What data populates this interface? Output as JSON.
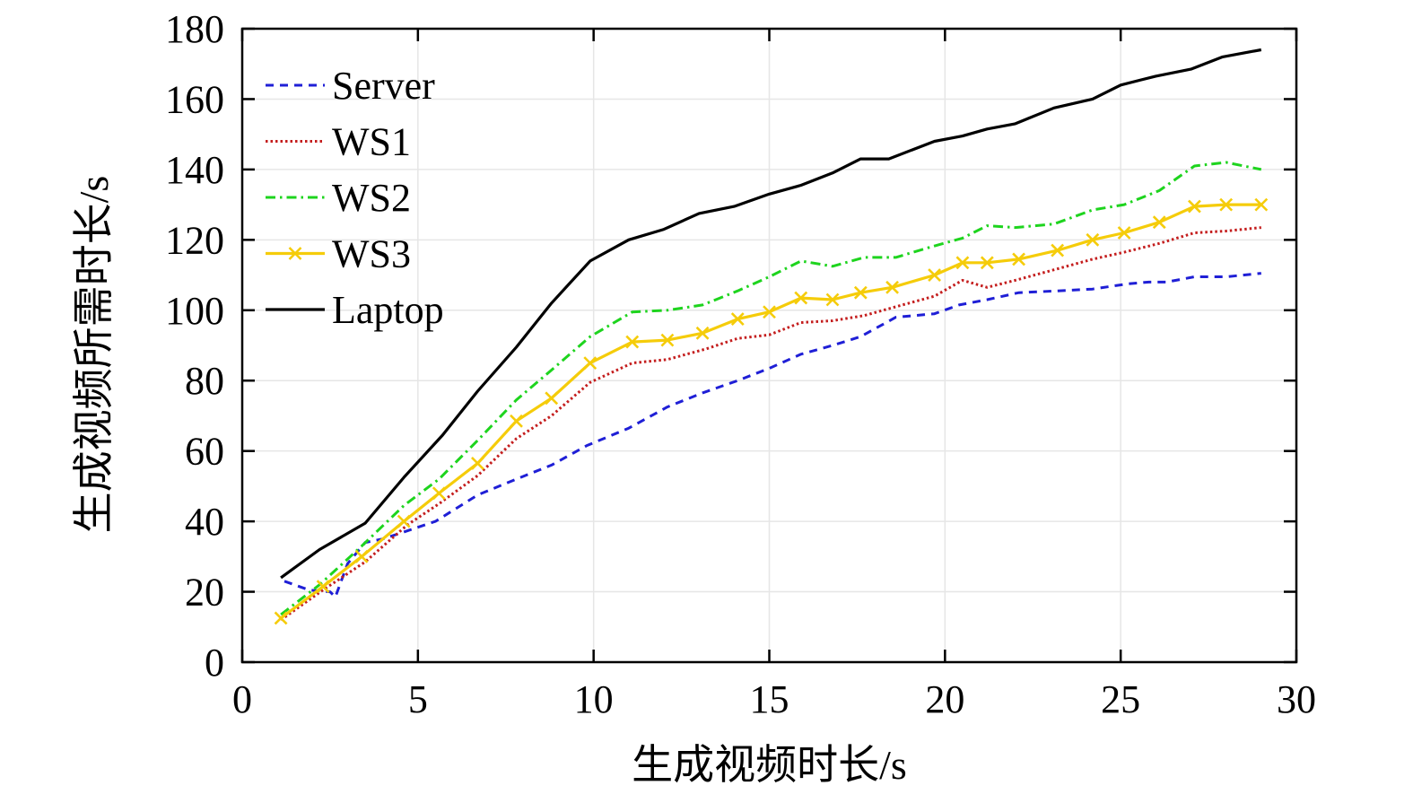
{
  "chart_data": {
    "type": "line",
    "title": "",
    "xlabel": "生成视频时长/s",
    "ylabel": "生成视频所需时长/s",
    "xlim": [
      0,
      30
    ],
    "ylim": [
      0,
      180
    ],
    "xticks": [
      0,
      5,
      10,
      15,
      20,
      25,
      30
    ],
    "yticks": [
      0,
      20,
      40,
      60,
      80,
      100,
      120,
      140,
      160,
      180
    ],
    "grid": true,
    "legend_position": "top-left",
    "series": [
      {
        "name": "Server",
        "color": "#1f1fd6",
        "style": "dashed",
        "marker": "none",
        "points": [
          [
            1.2,
            23
          ],
          [
            1.9,
            20.5
          ],
          [
            2.5,
            20
          ],
          [
            2.65,
            18.5
          ],
          [
            3.0,
            28
          ],
          [
            3.5,
            34
          ],
          [
            4.0,
            35
          ],
          [
            4.6,
            37
          ],
          [
            5.5,
            40
          ],
          [
            6.7,
            47.5
          ],
          [
            7.8,
            52
          ],
          [
            8.8,
            56
          ],
          [
            9.8,
            61.5
          ],
          [
            11.0,
            66.5
          ],
          [
            12.1,
            72.5
          ],
          [
            13.1,
            76.5
          ],
          [
            14.1,
            80
          ],
          [
            15.0,
            83.5
          ],
          [
            15.9,
            87.5
          ],
          [
            16.8,
            90
          ],
          [
            17.6,
            92.5
          ],
          [
            18.6,
            98
          ],
          [
            19.7,
            99
          ],
          [
            20.4,
            101.5
          ],
          [
            21.2,
            103
          ],
          [
            22.1,
            105
          ],
          [
            23.2,
            105.5
          ],
          [
            24.2,
            106
          ],
          [
            25.2,
            107.5
          ],
          [
            25.8,
            108
          ],
          [
            26.3,
            108
          ],
          [
            27.1,
            109.5
          ],
          [
            28.0,
            109.5
          ],
          [
            29.0,
            110.5
          ]
        ]
      },
      {
        "name": "WS1",
        "color": "#c41e1e",
        "style": "dotted",
        "marker": "none",
        "points": [
          [
            1.1,
            12
          ],
          [
            2.3,
            20.5
          ],
          [
            3.5,
            28.5
          ],
          [
            4.7,
            39
          ],
          [
            5.6,
            45
          ],
          [
            6.7,
            53
          ],
          [
            7.8,
            63.5
          ],
          [
            8.8,
            70
          ],
          [
            9.9,
            79.5
          ],
          [
            11.1,
            85
          ],
          [
            12.1,
            86
          ],
          [
            13.2,
            89
          ],
          [
            14.1,
            92
          ],
          [
            15.0,
            93
          ],
          [
            15.9,
            96.5
          ],
          [
            16.8,
            97
          ],
          [
            17.7,
            98.5
          ],
          [
            18.6,
            101
          ],
          [
            19.7,
            104
          ],
          [
            20.5,
            108.5
          ],
          [
            21.2,
            106.5
          ],
          [
            22.0,
            108.5
          ],
          [
            23.1,
            111.5
          ],
          [
            24.2,
            114.5
          ],
          [
            25.1,
            116.5
          ],
          [
            26.1,
            119
          ],
          [
            27.1,
            122
          ],
          [
            28.0,
            122.5
          ],
          [
            29.0,
            123.5
          ]
        ]
      },
      {
        "name": "WS2",
        "color": "#1ed41e",
        "style": "dashdot",
        "marker": "none",
        "points": [
          [
            1.1,
            13.5
          ],
          [
            2.2,
            22
          ],
          [
            3.4,
            33
          ],
          [
            4.6,
            44.5
          ],
          [
            5.6,
            52
          ],
          [
            6.7,
            63
          ],
          [
            7.8,
            74.5
          ],
          [
            8.8,
            83
          ],
          [
            9.9,
            92.5
          ],
          [
            11.1,
            99.5
          ],
          [
            12.1,
            100
          ],
          [
            13.1,
            101.5
          ],
          [
            14.1,
            105.5
          ],
          [
            15.0,
            109.5
          ],
          [
            15.9,
            114
          ],
          [
            16.8,
            112.5
          ],
          [
            17.7,
            115
          ],
          [
            18.6,
            115
          ],
          [
            19.6,
            118
          ],
          [
            20.5,
            120.5
          ],
          [
            21.2,
            124
          ],
          [
            22.0,
            123.5
          ],
          [
            23.1,
            124.5
          ],
          [
            24.2,
            128.5
          ],
          [
            25.1,
            130
          ],
          [
            26.1,
            134
          ],
          [
            27.1,
            141
          ],
          [
            28.0,
            142
          ],
          [
            29.0,
            140
          ]
        ]
      },
      {
        "name": "WS3",
        "color": "#f5cc0a",
        "style": "solid",
        "marker": "x",
        "points": [
          [
            1.1,
            12.5
          ],
          [
            2.3,
            21.5
          ],
          [
            3.4,
            30
          ],
          [
            4.6,
            40
          ],
          [
            5.6,
            48
          ],
          [
            6.7,
            56.5
          ],
          [
            7.8,
            68.5
          ],
          [
            8.8,
            75
          ],
          [
            9.9,
            85
          ],
          [
            11.1,
            91
          ],
          [
            12.1,
            91.5
          ],
          [
            13.1,
            93.5
          ],
          [
            14.1,
            97.5
          ],
          [
            15.0,
            99.5
          ],
          [
            15.9,
            103.5
          ],
          [
            16.8,
            103
          ],
          [
            17.6,
            105
          ],
          [
            18.5,
            106.5
          ],
          [
            19.7,
            110
          ],
          [
            20.5,
            113.5
          ],
          [
            21.2,
            113.5
          ],
          [
            22.1,
            114.5
          ],
          [
            23.2,
            117
          ],
          [
            24.2,
            120
          ],
          [
            25.1,
            122
          ],
          [
            26.1,
            125
          ],
          [
            27.1,
            129.5
          ],
          [
            28.0,
            130
          ],
          [
            29.0,
            130
          ]
        ]
      },
      {
        "name": "Laptop",
        "color": "#000000",
        "style": "solid",
        "marker": "none",
        "points": [
          [
            1.1,
            24
          ],
          [
            2.2,
            32
          ],
          [
            3.5,
            39.5
          ],
          [
            4.6,
            52.5
          ],
          [
            5.7,
            64.5
          ],
          [
            6.7,
            77
          ],
          [
            7.8,
            89.5
          ],
          [
            8.8,
            102
          ],
          [
            9.9,
            114
          ],
          [
            11.0,
            120
          ],
          [
            12.0,
            123
          ],
          [
            13.0,
            127.5
          ],
          [
            14.0,
            129.5
          ],
          [
            15.0,
            133
          ],
          [
            15.9,
            135.5
          ],
          [
            16.8,
            139
          ],
          [
            17.6,
            143
          ],
          [
            18.4,
            143
          ],
          [
            19.7,
            148
          ],
          [
            20.5,
            149.5
          ],
          [
            21.2,
            151.5
          ],
          [
            22.0,
            153
          ],
          [
            23.1,
            157.5
          ],
          [
            24.2,
            160
          ],
          [
            25.0,
            164
          ],
          [
            26.0,
            166.5
          ],
          [
            27.0,
            168.5
          ],
          [
            27.9,
            172
          ],
          [
            29.0,
            174
          ]
        ]
      }
    ]
  }
}
